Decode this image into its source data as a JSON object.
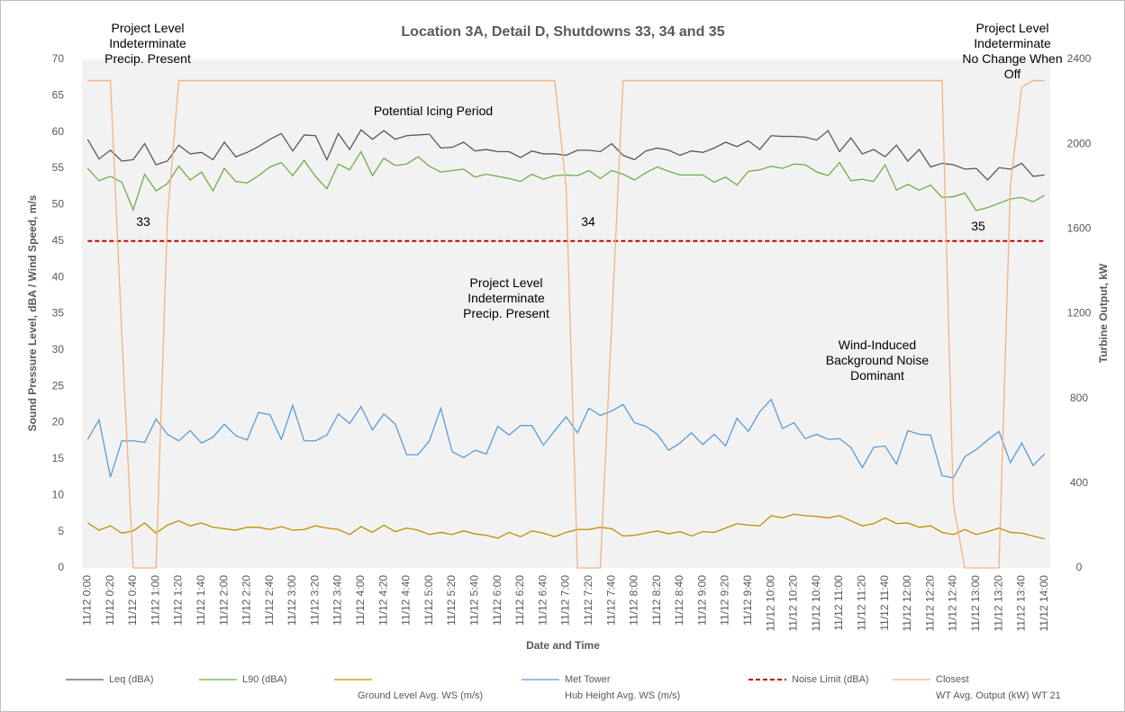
{
  "chart_data": {
    "type": "line",
    "title": "Location 3A, Detail D, Shutdowns 33, 34 and 35",
    "x_label": "Date and Time",
    "y_label": "Sound Pressure Level, dBA / Wind Speed, m/s",
    "y2_label": "Turbine Output, kW",
    "categories": [
      "11/12 0:00",
      null,
      "11/12 0:20",
      null,
      "11/12 0:40",
      null,
      "11/12 1:00",
      null,
      "11/12 1:20",
      null,
      "11/12 1:40",
      null,
      "11/12 2:00",
      null,
      "11/12 2:20",
      null,
      "11/12 2:40",
      null,
      "11/12 3:00",
      null,
      "11/12 3:20",
      null,
      "11/12 3:40",
      null,
      "11/12 4:00",
      null,
      "11/12 4:20",
      null,
      "11/12 4:40",
      null,
      "11/12 5:00",
      null,
      "11/12 5:20",
      null,
      "11/12 5:40",
      null,
      "11/12 6:00",
      null,
      "11/12 6:20",
      null,
      "11/12 6:40",
      null,
      "11/12 7:00",
      null,
      "11/12 7:20",
      null,
      "11/12 7:40",
      null,
      "11/12 8:00",
      null,
      "11/12 8:20",
      null,
      "11/12 8:40",
      null,
      "11/12 9:00",
      null,
      "11/12 9:20",
      null,
      "11/12 9:40",
      null,
      "11/12 10:00",
      null,
      "11/12 10:20",
      null,
      "11/12 10:40",
      null,
      "11/12 11:00",
      null,
      "11/12 11:20",
      null,
      "11/12 11:40",
      null,
      "11/12 12:00",
      null,
      "11/12 12:20",
      null,
      "11/12 12:40",
      null,
      "11/12 13:00",
      null,
      "11/12 13:20",
      null,
      "11/12 13:40",
      null,
      "11/12 14:00"
    ],
    "ylim": [
      0,
      70
    ],
    "yticks": [
      0,
      5,
      10,
      15,
      20,
      25,
      30,
      35,
      40,
      45,
      50,
      55,
      60,
      65,
      70
    ],
    "y2lim": [
      0,
      2400
    ],
    "y2ticks": [
      0,
      400,
      800,
      1200,
      1600,
      2000,
      2400
    ],
    "grid": false,
    "series": [
      {
        "name": "Leq (dBA)",
        "color": "#595959",
        "values": [
          59,
          56.3,
          57.5,
          56,
          56.2,
          58.4,
          55.5,
          56,
          58.2,
          57,
          57.2,
          56.2,
          58.6,
          56.6,
          57.2,
          58,
          59,
          59.8,
          57.4,
          59.6,
          59.5,
          56.2,
          59.8,
          57.6,
          60.3,
          59,
          60.2,
          59,
          59.5,
          59.6,
          59.7,
          57.8,
          57.9,
          58.6,
          57.4,
          57.6,
          57.3,
          57.3,
          56.5,
          57.4,
          57,
          57,
          56.8,
          57.5,
          57.5,
          57.3,
          58.4,
          56.8,
          56.2,
          57.4,
          57.8,
          57.5,
          56.8,
          57.4,
          57.2,
          57.8,
          58.6,
          58,
          58.8,
          57.6,
          59.5,
          59.4,
          59.4,
          59.3,
          58.9,
          60.2,
          57.3,
          59.2,
          57,
          57.6,
          56.6,
          58.2,
          56,
          57.6,
          55.2,
          55.7,
          55.5,
          54.9,
          55,
          53.4,
          55.1,
          54.9,
          55.7,
          53.9,
          54.1
        ]
      },
      {
        "name": "L90 (dBA)",
        "color": "#70ad47",
        "values": [
          55,
          53.3,
          53.9,
          53.1,
          49.3,
          54.2,
          51.9,
          52.9,
          55.3,
          53.4,
          54.5,
          51.9,
          55,
          53.2,
          53,
          54,
          55.2,
          55.8,
          54,
          56.1,
          53.9,
          52.2,
          55.6,
          54.8,
          57.3,
          54,
          56.4,
          55.4,
          55.6,
          56.6,
          55.3,
          54.5,
          54.7,
          54.9,
          53.8,
          54.2,
          53.9,
          53.6,
          53.2,
          54.2,
          53.5,
          54,
          54.1,
          54,
          54.7,
          53.6,
          54.7,
          54.2,
          53.4,
          54.4,
          55.2,
          54.6,
          54.1,
          54.1,
          54.1,
          53.1,
          53.8,
          52.7,
          54.6,
          54.8,
          55.3,
          55,
          55.6,
          55.5,
          54.5,
          54,
          55.8,
          53.3,
          53.5,
          53.2,
          55.5,
          52,
          52.8,
          52,
          52.7,
          51,
          51.1,
          51.6,
          49.2,
          49.6,
          50.2,
          50.8,
          51,
          50.4,
          51.3
        ]
      },
      {
        "name": "Ground Level Avg. WS (m/s)",
        "color": "#bf8f00",
        "values": [
          6.2,
          5.2,
          5.8,
          4.8,
          5.1,
          6.2,
          4.8,
          5.9,
          6.5,
          5.8,
          6.2,
          5.6,
          5.4,
          5.2,
          5.6,
          5.6,
          5.3,
          5.7,
          5.2,
          5.3,
          5.8,
          5.5,
          5.3,
          4.6,
          5.7,
          4.9,
          5.9,
          5,
          5.5,
          5.2,
          4.6,
          4.9,
          4.6,
          5.1,
          4.7,
          4.5,
          4.1,
          4.9,
          4.3,
          5.1,
          4.8,
          4.3,
          4.9,
          5.3,
          5.3,
          5.6,
          5.4,
          4.4,
          4.5,
          4.8,
          5.1,
          4.7,
          5,
          4.4,
          5,
          4.9,
          5.5,
          6.1,
          5.9,
          5.8,
          7.2,
          6.9,
          7.4,
          7.2,
          7.1,
          6.9,
          7.2,
          6.5,
          5.8,
          6.1,
          6.9,
          6.1,
          6.2,
          5.6,
          5.8,
          4.9,
          4.6,
          5.3,
          4.6,
          5,
          5.5,
          4.9,
          4.8,
          4.4,
          4
        ]
      },
      {
        "name": "Met Tower\nHub Height Avg. WS (m/s)",
        "color": "#5b9bd5",
        "values": [
          17.7,
          20.4,
          12.5,
          17.5,
          17.5,
          17.3,
          20.5,
          18.4,
          17.5,
          18.9,
          17.2,
          18,
          19.8,
          18.2,
          17.6,
          21.4,
          21.1,
          17.7,
          22.4,
          17.5,
          17.5,
          18.3,
          21.2,
          19.9,
          22.2,
          19,
          21.2,
          19.8,
          15.6,
          15.6,
          17.5,
          22,
          16,
          15.2,
          16.2,
          15.7,
          19.5,
          18.3,
          19.6,
          19.6,
          16.9,
          18.9,
          20.8,
          18.6,
          22,
          21,
          21.6,
          22.5,
          20,
          19.5,
          18.4,
          16.2,
          17.2,
          18.6,
          17,
          18.4,
          16.8,
          20.6,
          18.8,
          21.5,
          23.2,
          19.2,
          20,
          17.8,
          18.4,
          17.7,
          17.8,
          16.6,
          13.8,
          16.6,
          16.8,
          14.3,
          18.9,
          18.4,
          18.3,
          12.7,
          12.4,
          15.3,
          16.3,
          17.6,
          18.8,
          14.5,
          17.2,
          14.1,
          15.7
        ]
      },
      {
        "name": "Noise Limit (dBA)",
        "color": "#c00000",
        "dashed": true,
        "values": [
          45,
          45,
          45,
          45,
          45,
          45,
          45,
          45,
          45,
          45,
          45,
          45,
          45,
          45,
          45,
          45,
          45,
          45,
          45,
          45,
          45,
          45,
          45,
          45,
          45,
          45,
          45,
          45,
          45,
          45,
          45,
          45,
          45,
          45,
          45,
          45,
          45,
          45,
          45,
          45,
          45,
          45,
          45,
          45,
          45,
          45,
          45,
          45,
          45,
          45,
          45,
          45,
          45,
          45,
          45,
          45,
          45,
          45,
          45,
          45,
          45,
          45,
          45,
          45,
          45,
          45,
          45,
          45,
          45,
          45,
          45,
          45,
          45,
          45,
          45,
          45,
          45,
          45,
          45,
          45,
          45,
          45,
          45,
          45,
          45
        ]
      },
      {
        "name": "Closest\nWT Avg. Output (kW) WT 21",
        "color": "#f4b183",
        "axis": "y2",
        "values": [
          2300,
          2300,
          2300,
          1100,
          0,
          0,
          0,
          1650,
          2300,
          2300,
          2300,
          2300,
          2300,
          2300,
          2300,
          2300,
          2300,
          2300,
          2300,
          2300,
          2300,
          2300,
          2300,
          2300,
          2300,
          2300,
          2300,
          2300,
          2300,
          2300,
          2300,
          2300,
          2300,
          2300,
          2300,
          2300,
          2300,
          2300,
          2300,
          2300,
          2300,
          2300,
          1800,
          0,
          0,
          0,
          1150,
          2300,
          2300,
          2300,
          2300,
          2300,
          2300,
          2300,
          2300,
          2300,
          2300,
          2300,
          2300,
          2300,
          2300,
          2300,
          2300,
          2300,
          2300,
          2300,
          2300,
          2300,
          2300,
          2300,
          2300,
          2300,
          2300,
          2300,
          2300,
          2300,
          300,
          0,
          0,
          0,
          0,
          1800,
          2270,
          2300,
          2300
        ]
      }
    ],
    "annotations": [
      "Project Level\nIndeterminate\nPrecip. Present",
      "Potential Icing Period",
      "33",
      "34",
      "35",
      "Project Level\nIndeterminate\nPrecip. Present",
      "Wind-Induced\nBackground Noise\nDominant",
      "Project Level\nIndeterminate\nNo Change When Off"
    ]
  }
}
